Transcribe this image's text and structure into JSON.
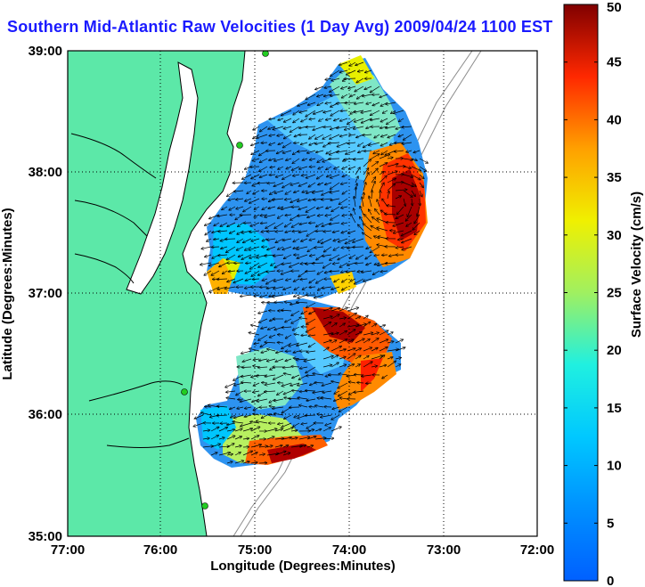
{
  "title": "Southern Mid-Atlantic Raw Velocities (1 Day Avg) 2009/04/24 1100 EST",
  "x_axis": {
    "label": "Longitude (Degrees:Minutes)",
    "ticks": [
      "77:00",
      "76:00",
      "75:00",
      "74:00",
      "73:00",
      "72:00"
    ]
  },
  "y_axis": {
    "label": "Latitude (Degrees:Minutes)",
    "ticks": [
      "39:00",
      "38:00",
      "37:00",
      "36:00",
      "35:00"
    ]
  },
  "colorbar": {
    "label": "Surface Velocity (cm/s)",
    "ticks": [
      "50",
      "45",
      "40",
      "35",
      "30",
      "25",
      "20",
      "15",
      "10",
      "5",
      "0"
    ],
    "range": [
      0,
      50
    ],
    "colormap": "jet"
  },
  "colors": {
    "title": "#1a1aff",
    "land": "#5ce8a8",
    "coastline": "#000000",
    "bathymetry": "#8c8c8c",
    "station": "#22cc22"
  }
}
